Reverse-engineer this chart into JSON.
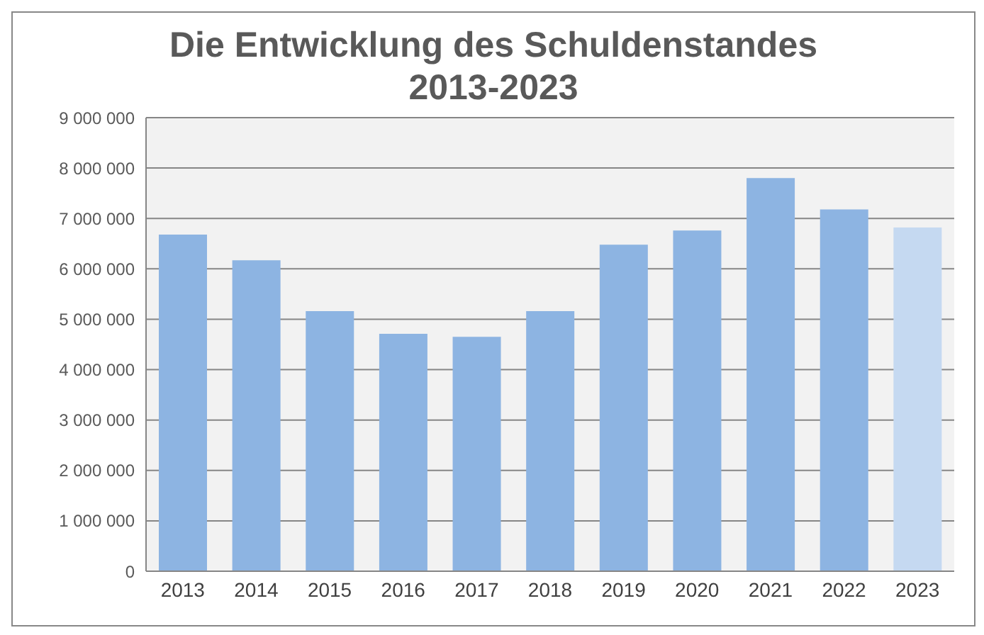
{
  "chart_data": {
    "type": "bar",
    "title": "Die Entwicklung des Schuldenstandes\n2013-2023",
    "categories": [
      "2013",
      "2014",
      "2015",
      "2016",
      "2017",
      "2018",
      "2019",
      "2020",
      "2021",
      "2022",
      "2023"
    ],
    "values": [
      6680000,
      6170000,
      5160000,
      4710000,
      4650000,
      5160000,
      6480000,
      6760000,
      7800000,
      7180000,
      6820000
    ],
    "colors": [
      "#8db4e2",
      "#8db4e2",
      "#8db4e2",
      "#8db4e2",
      "#8db4e2",
      "#8db4e2",
      "#8db4e2",
      "#8db4e2",
      "#8db4e2",
      "#8db4e2",
      "#c5d9f1"
    ],
    "ylim": [
      0,
      9000000
    ],
    "yticks": [
      {
        "value": 0,
        "label": "0"
      },
      {
        "value": 1000000,
        "label": "1 000 000"
      },
      {
        "value": 2000000,
        "label": "2 000 000"
      },
      {
        "value": 3000000,
        "label": "3 000 000"
      },
      {
        "value": 4000000,
        "label": "4 000 000"
      },
      {
        "value": 5000000,
        "label": "5 000 000"
      },
      {
        "value": 6000000,
        "label": "6 000 000"
      },
      {
        "value": 7000000,
        "label": "7 000 000"
      },
      {
        "value": 8000000,
        "label": "8 000 000"
      },
      {
        "value": 9000000,
        "label": "9 000 000"
      }
    ],
    "grid": "y"
  }
}
